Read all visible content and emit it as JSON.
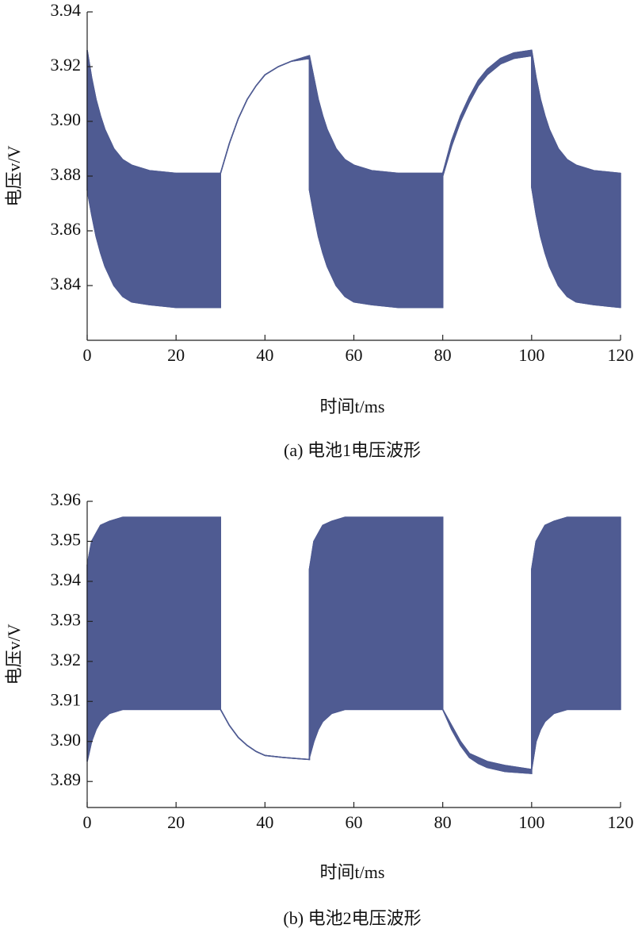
{
  "chart_data": [
    {
      "type": "band",
      "caption": "(a) 电池1电压波形",
      "xlabel": "时间t/ms",
      "ylabel": "电压v/V",
      "color": "#4f5b92",
      "xlim": [
        0,
        120
      ],
      "xticks": [
        0,
        20,
        40,
        60,
        80,
        100,
        120
      ],
      "ylim": [
        3.82,
        3.94
      ],
      "yticks": [
        3.84,
        3.86,
        3.88,
        {
          "value": 3.9,
          "label": "3.90"
        },
        3.92,
        3.94
      ],
      "x": [
        0,
        1,
        2,
        3,
        4,
        6,
        8,
        10,
        14,
        20,
        30,
        30,
        32,
        34,
        36,
        38,
        40,
        43,
        46,
        50,
        50,
        51,
        52,
        53,
        54,
        56,
        58,
        60,
        64,
        70,
        80,
        80,
        82,
        84,
        86,
        88,
        90,
        93,
        96,
        100,
        100,
        101,
        102,
        103,
        104,
        106,
        108,
        110,
        114,
        120
      ],
      "upper": [
        3.926,
        3.916,
        3.908,
        3.902,
        3.897,
        3.89,
        3.886,
        3.884,
        3.882,
        3.881,
        3.881,
        3.881,
        3.892,
        3.901,
        3.908,
        3.913,
        3.917,
        3.92,
        3.922,
        3.924,
        3.924,
        3.916,
        3.908,
        3.902,
        3.897,
        3.89,
        3.886,
        3.884,
        3.882,
        3.881,
        3.881,
        3.881,
        3.893,
        3.902,
        3.909,
        3.915,
        3.919,
        3.923,
        3.925,
        3.926,
        3.926,
        3.916,
        3.908,
        3.902,
        3.897,
        3.89,
        3.886,
        3.884,
        3.882,
        3.881
      ],
      "lower": [
        3.875,
        3.866,
        3.858,
        3.852,
        3.847,
        3.84,
        3.836,
        3.834,
        3.833,
        3.832,
        3.832,
        3.881,
        3.892,
        3.901,
        3.908,
        3.913,
        3.917,
        3.92,
        3.922,
        3.923,
        3.875,
        3.866,
        3.858,
        3.852,
        3.847,
        3.84,
        3.836,
        3.834,
        3.833,
        3.832,
        3.832,
        3.88,
        3.891,
        3.9,
        3.907,
        3.913,
        3.917,
        3.921,
        3.923,
        3.924,
        3.876,
        3.866,
        3.858,
        3.852,
        3.847,
        3.84,
        3.836,
        3.834,
        3.833,
        3.832
      ]
    },
    {
      "type": "band",
      "caption": "(b) 电池2电压波形",
      "xlabel": "时间t/ms",
      "ylabel": "电压v/V",
      "color": "#4f5b92",
      "xlim": [
        0,
        120
      ],
      "xticks": [
        0,
        20,
        40,
        60,
        80,
        100,
        120
      ],
      "ylim": [
        3.8835,
        3.96
      ],
      "yticks": [
        3.89,
        {
          "value": 3.9,
          "label": "3.90"
        },
        3.91,
        3.92,
        3.93,
        3.94,
        3.95,
        3.96
      ],
      "x": [
        0,
        1,
        2,
        3,
        5,
        8,
        30,
        30,
        32,
        34,
        36,
        38,
        40,
        44,
        50,
        50,
        51,
        52,
        53,
        55,
        58,
        80,
        80,
        82,
        84,
        86,
        88,
        90,
        94,
        100,
        100,
        101,
        102,
        103,
        105,
        108,
        120
      ],
      "upper": [
        3.944,
        3.95,
        3.952,
        3.954,
        3.955,
        3.956,
        3.956,
        3.908,
        3.904,
        3.901,
        3.899,
        3.8975,
        3.8965,
        3.896,
        3.8955,
        3.943,
        3.95,
        3.952,
        3.954,
        3.955,
        3.956,
        3.956,
        3.908,
        3.904,
        3.9,
        3.897,
        3.896,
        3.895,
        3.894,
        3.893,
        3.943,
        3.95,
        3.952,
        3.954,
        3.955,
        3.956,
        3.956
      ],
      "lower": [
        3.895,
        3.9,
        3.903,
        3.905,
        3.907,
        3.908,
        3.908,
        3.908,
        3.904,
        3.901,
        3.899,
        3.8975,
        3.8965,
        3.896,
        3.8955,
        3.896,
        3.9,
        3.903,
        3.905,
        3.907,
        3.908,
        3.908,
        3.908,
        3.903,
        3.899,
        3.896,
        3.8945,
        3.8935,
        3.8925,
        3.892,
        3.893,
        3.9,
        3.903,
        3.905,
        3.907,
        3.908,
        3.908
      ]
    }
  ]
}
